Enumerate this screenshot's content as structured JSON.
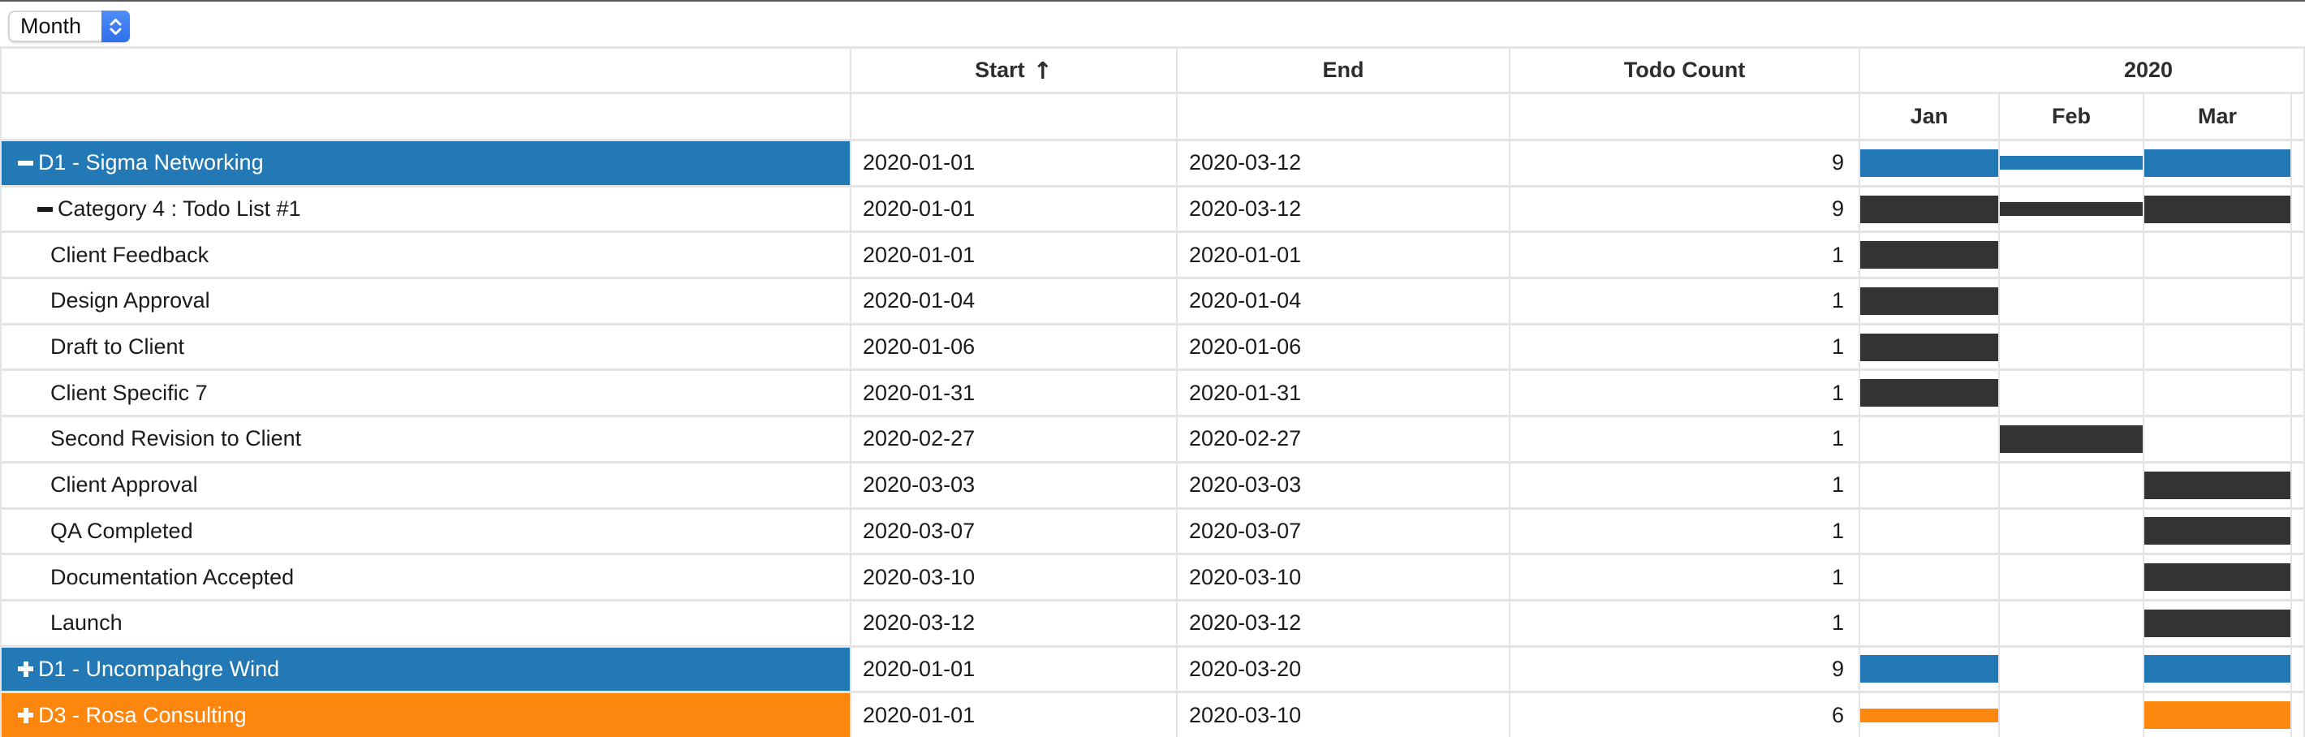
{
  "timescale": {
    "value": "Month"
  },
  "table": {
    "columns": {
      "name": "",
      "start": "Start",
      "end": "End",
      "todo_count": "Todo Count"
    },
    "sort": {
      "column": "start",
      "direction": "ascending",
      "icon": "↑"
    },
    "year": "2020",
    "months": [
      "Jan",
      "Feb",
      "Mar"
    ]
  },
  "colors": {
    "group_blue": "#2379b5",
    "group_orange": "#fc860e",
    "bar_dark": "#333333",
    "grid": "#e4e4e4"
  },
  "rows": [
    {
      "label": "D1 - Sigma Networking",
      "level": 0,
      "toggle": "collapse",
      "row_style": "blue",
      "start": "2020-01-01",
      "end": "2020-03-12",
      "count": "9",
      "bar_color": "blue",
      "bars": [
        {
          "month": "Jan",
          "size": "full"
        },
        {
          "month": "Feb",
          "size": "thin"
        },
        {
          "month": "Mar",
          "size": "full"
        }
      ]
    },
    {
      "label": "Category 4 : Todo List #1",
      "level": 1,
      "toggle": "collapse",
      "row_style": "plain",
      "start": "2020-01-01",
      "end": "2020-03-12",
      "count": "9",
      "bar_color": "dark",
      "bars": [
        {
          "month": "Jan",
          "size": "full"
        },
        {
          "month": "Feb",
          "size": "thin"
        },
        {
          "month": "Mar",
          "size": "full"
        }
      ]
    },
    {
      "label": "Client Feedback",
      "level": 2,
      "toggle": null,
      "row_style": "plain",
      "start": "2020-01-01",
      "end": "2020-01-01",
      "count": "1",
      "bar_color": "dark",
      "bars": [
        {
          "month": "Jan",
          "size": "full"
        }
      ]
    },
    {
      "label": "Design Approval",
      "level": 2,
      "toggle": null,
      "row_style": "plain",
      "start": "2020-01-04",
      "end": "2020-01-04",
      "count": "1",
      "bar_color": "dark",
      "bars": [
        {
          "month": "Jan",
          "size": "full"
        }
      ]
    },
    {
      "label": "Draft to Client",
      "level": 2,
      "toggle": null,
      "row_style": "plain",
      "start": "2020-01-06",
      "end": "2020-01-06",
      "count": "1",
      "bar_color": "dark",
      "bars": [
        {
          "month": "Jan",
          "size": "full"
        }
      ]
    },
    {
      "label": "Client Specific 7",
      "level": 2,
      "toggle": null,
      "row_style": "plain",
      "start": "2020-01-31",
      "end": "2020-01-31",
      "count": "1",
      "bar_color": "dark",
      "bars": [
        {
          "month": "Jan",
          "size": "full"
        }
      ]
    },
    {
      "label": "Second Revision to Client",
      "level": 2,
      "toggle": null,
      "row_style": "plain",
      "start": "2020-02-27",
      "end": "2020-02-27",
      "count": "1",
      "bar_color": "dark",
      "bars": [
        {
          "month": "Feb",
          "size": "full"
        }
      ]
    },
    {
      "label": "Client Approval",
      "level": 2,
      "toggle": null,
      "row_style": "plain",
      "start": "2020-03-03",
      "end": "2020-03-03",
      "count": "1",
      "bar_color": "dark",
      "bars": [
        {
          "month": "Mar",
          "size": "full"
        }
      ]
    },
    {
      "label": "QA Completed",
      "level": 2,
      "toggle": null,
      "row_style": "plain",
      "start": "2020-03-07",
      "end": "2020-03-07",
      "count": "1",
      "bar_color": "dark",
      "bars": [
        {
          "month": "Mar",
          "size": "full"
        }
      ]
    },
    {
      "label": "Documentation Accepted",
      "level": 2,
      "toggle": null,
      "row_style": "plain",
      "start": "2020-03-10",
      "end": "2020-03-10",
      "count": "1",
      "bar_color": "dark",
      "bars": [
        {
          "month": "Mar",
          "size": "full"
        }
      ]
    },
    {
      "label": "Launch",
      "level": 2,
      "toggle": null,
      "row_style": "plain",
      "start": "2020-03-12",
      "end": "2020-03-12",
      "count": "1",
      "bar_color": "dark",
      "bars": [
        {
          "month": "Mar",
          "size": "full"
        }
      ]
    },
    {
      "label": "D1 - Uncompahgre Wind",
      "level": 0,
      "toggle": "expand",
      "row_style": "blue",
      "start": "2020-01-01",
      "end": "2020-03-20",
      "count": "9",
      "bar_color": "blue",
      "bars": [
        {
          "month": "Jan",
          "size": "full"
        },
        {
          "month": "Mar",
          "size": "full"
        }
      ]
    },
    {
      "label": "D3 - Rosa Consulting",
      "level": 0,
      "toggle": "expand",
      "row_style": "orange",
      "start": "2020-01-01",
      "end": "2020-03-10",
      "count": "6",
      "bar_color": "orange",
      "bars": [
        {
          "month": "Jan",
          "size": "thin"
        },
        {
          "month": "Mar",
          "size": "full"
        }
      ]
    }
  ]
}
